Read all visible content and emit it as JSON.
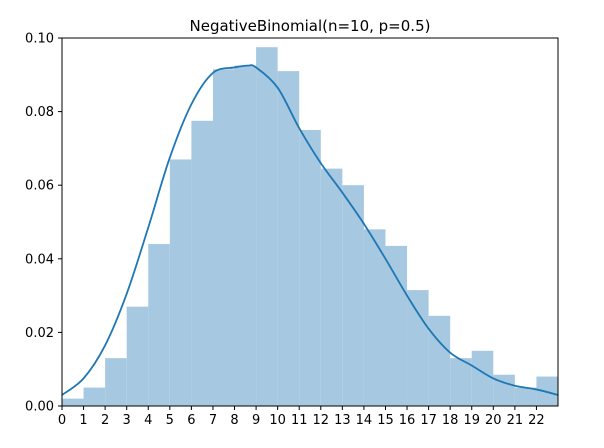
{
  "chart_data": {
    "type": "bar",
    "title": "NegativeBinomial(n=10, p=0.5)",
    "xlabel": "",
    "ylabel": "",
    "xlim": [
      0,
      23
    ],
    "ylim": [
      0,
      0.1
    ],
    "x_ticks": [
      0,
      1,
      2,
      3,
      4,
      5,
      6,
      7,
      8,
      9,
      10,
      11,
      12,
      13,
      14,
      15,
      16,
      17,
      18,
      19,
      20,
      21,
      22
    ],
    "y_ticks": [
      0.0,
      0.02,
      0.04,
      0.06,
      0.08,
      0.1
    ],
    "y_tick_labels": [
      "0.00",
      "0.02",
      "0.04",
      "0.06",
      "0.08",
      "0.10"
    ],
    "grid": false,
    "colors": {
      "bar": "#a6c8e0",
      "line": "#1f77b4"
    },
    "series": [
      {
        "type": "histogram",
        "bins": [
          {
            "x0": 0,
            "x1": 1,
            "value": 0.002
          },
          {
            "x0": 1,
            "x1": 2,
            "value": 0.005
          },
          {
            "x0": 2,
            "x1": 3,
            "value": 0.013
          },
          {
            "x0": 3,
            "x1": 4,
            "value": 0.027
          },
          {
            "x0": 4,
            "x1": 5,
            "value": 0.044
          },
          {
            "x0": 5,
            "x1": 6,
            "value": 0.067
          },
          {
            "x0": 6,
            "x1": 7,
            "value": 0.0775
          },
          {
            "x0": 7,
            "x1": 8,
            "value": 0.0915
          },
          {
            "x0": 8,
            "x1": 9,
            "value": 0.0925
          },
          {
            "x0": 9,
            "x1": 10,
            "value": 0.0975
          },
          {
            "x0": 10,
            "x1": 11,
            "value": 0.091
          },
          {
            "x0": 11,
            "x1": 12,
            "value": 0.075
          },
          {
            "x0": 12,
            "x1": 13,
            "value": 0.0645
          },
          {
            "x0": 13,
            "x1": 14,
            "value": 0.06
          },
          {
            "x0": 14,
            "x1": 15,
            "value": 0.048
          },
          {
            "x0": 15,
            "x1": 16,
            "value": 0.0435
          },
          {
            "x0": 16,
            "x1": 17,
            "value": 0.0315
          },
          {
            "x0": 17,
            "x1": 18,
            "value": 0.0245
          },
          {
            "x0": 18,
            "x1": 19,
            "value": 0.013
          },
          {
            "x0": 19,
            "x1": 20,
            "value": 0.015
          },
          {
            "x0": 20,
            "x1": 21,
            "value": 0.0085
          },
          {
            "x0": 21,
            "x1": 22,
            "value": 0.005
          },
          {
            "x0": 22,
            "x1": 23,
            "value": 0.008
          }
        ]
      },
      {
        "type": "line",
        "x": [
          0,
          1,
          2,
          3,
          4,
          5,
          6,
          7,
          8,
          8.6,
          9,
          10,
          11,
          12,
          13,
          14,
          15,
          16,
          17,
          18,
          19,
          20,
          21,
          22,
          23
        ],
        "y": [
          0.003,
          0.0075,
          0.0165,
          0.0305,
          0.0485,
          0.0675,
          0.082,
          0.0905,
          0.092,
          0.0925,
          0.092,
          0.0865,
          0.0755,
          0.066,
          0.058,
          0.0495,
          0.04,
          0.03,
          0.021,
          0.0145,
          0.011,
          0.0075,
          0.0055,
          0.0045,
          0.003
        ]
      }
    ]
  }
}
